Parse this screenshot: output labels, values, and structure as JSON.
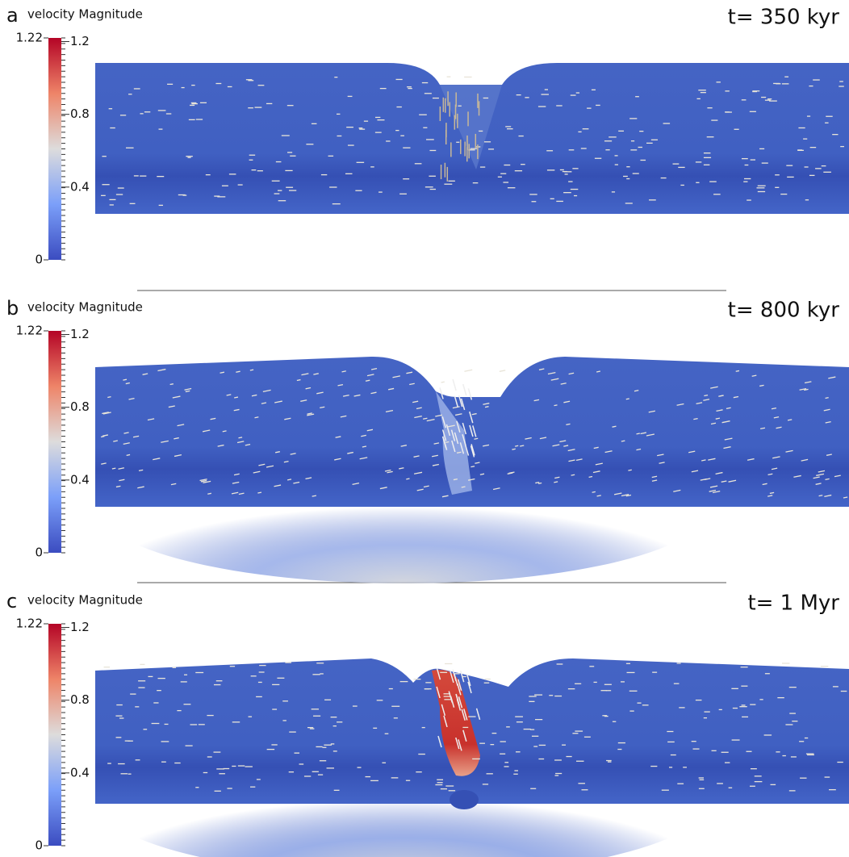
{
  "panels": [
    {
      "label": "a",
      "colorbar_title": "velocity Magnitude",
      "range_labels": [
        "1.22",
        "0"
      ],
      "colorbar_ticks": [
        "1.2",
        "0.8",
        "0.4"
      ],
      "time": "t= 350 kyr"
    },
    {
      "label": "b",
      "colorbar_title": "velocity Magnitude",
      "range_labels": [
        "1.22",
        "0"
      ],
      "colorbar_ticks": [
        "1.2",
        "0.8",
        "0.4"
      ],
      "time": "t= 800 kyr"
    },
    {
      "label": "c",
      "colorbar_title": "velocity Magnitude",
      "range_labels": [
        "1.22",
        "0"
      ],
      "colorbar_ticks": [
        "1.2",
        "0.8",
        "0.4"
      ],
      "time": "t= 1 Myr"
    }
  ]
}
